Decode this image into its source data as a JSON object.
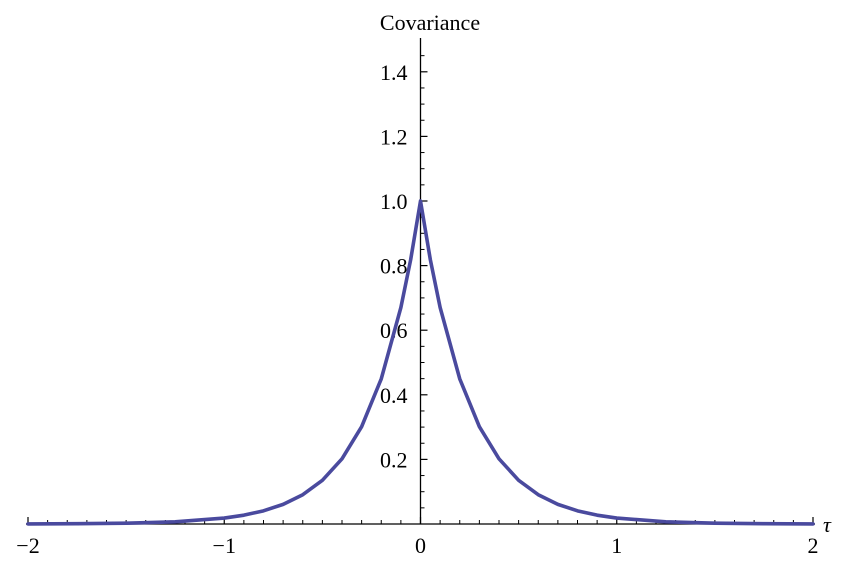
{
  "chart_data": {
    "type": "line",
    "title": "",
    "xlabel": "τ",
    "ylabel": "Covariance",
    "xlim": [
      -2,
      2
    ],
    "ylim": [
      0,
      1.5
    ],
    "x_ticks": [
      -2,
      -1,
      0,
      1,
      2
    ],
    "x_tick_labels": [
      "−2",
      "−1",
      "0",
      "1",
      "2"
    ],
    "y_ticks": [
      0.2,
      0.4,
      0.6,
      0.8,
      1.0,
      1.2,
      1.4
    ],
    "y_tick_labels": [
      "0.2",
      "0.4",
      "0.6",
      "0.8",
      "1.0",
      "1.2",
      "1.4"
    ],
    "grid": false,
    "series": [
      {
        "color": "#4a4a9e",
        "x": [
          -2,
          -1.75,
          -1.5,
          -1.25,
          -1,
          -0.9,
          -0.8,
          -0.7,
          -0.6,
          -0.5,
          -0.4,
          -0.3,
          -0.2,
          -0.1,
          -0.05,
          0,
          0.05,
          0.1,
          0.2,
          0.3,
          0.4,
          0.5,
          0.6,
          0.7,
          0.8,
          0.9,
          1,
          1.25,
          1.5,
          1.75,
          2
        ],
        "y": [
          0.0003,
          0.0009,
          0.0025,
          0.0067,
          0.0183,
          0.0273,
          0.0408,
          0.0608,
          0.0907,
          0.1353,
          0.2019,
          0.3012,
          0.4493,
          0.6703,
          0.8187,
          1.0,
          0.8187,
          0.6703,
          0.4493,
          0.3012,
          0.2019,
          0.1353,
          0.0907,
          0.0608,
          0.0408,
          0.0273,
          0.0183,
          0.0067,
          0.0025,
          0.0009,
          0.0003
        ]
      }
    ]
  }
}
